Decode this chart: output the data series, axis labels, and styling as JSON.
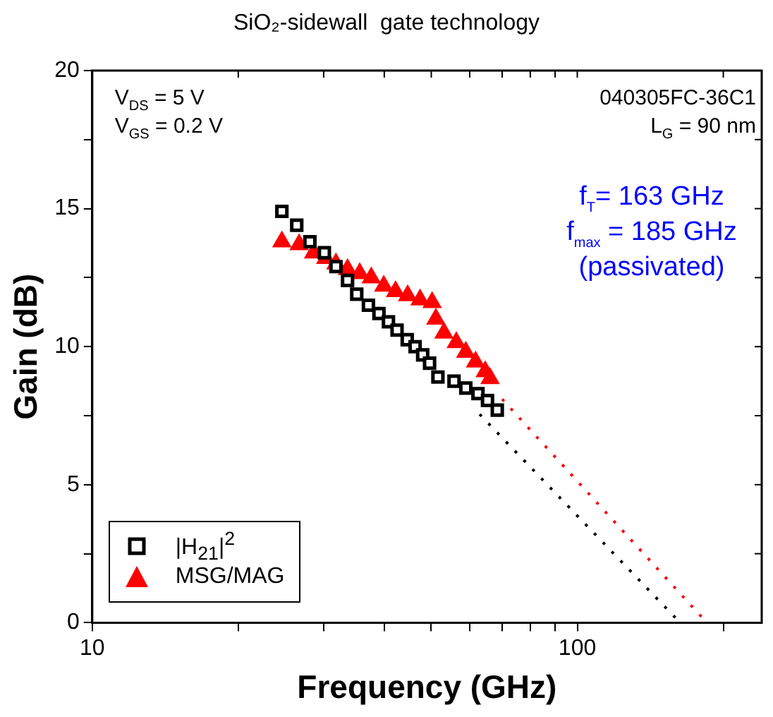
{
  "chart_data": {
    "type": "scatter",
    "title": "SiO₂-sidewall  gate technology",
    "xlabel": "Frequency (GHz)",
    "ylabel": "Gain (dB)",
    "log": "x",
    "xlim": [
      10,
      240
    ],
    "ylim": [
      0,
      20
    ],
    "xticks": [
      10,
      {
        "value": 20,
        "label": null
      },
      {
        "value": 30,
        "label": null
      },
      {
        "value": 40,
        "label": null
      },
      {
        "value": 50,
        "label": null
      },
      {
        "value": 60,
        "label": null
      },
      {
        "value": 70,
        "label": null
      },
      {
        "value": 80,
        "label": null
      },
      {
        "value": 90,
        "label": null
      },
      100,
      {
        "value": 200,
        "label": null
      }
    ],
    "yticks": [
      0,
      {
        "value": 2.5,
        "label": null
      },
      5,
      {
        "value": 7.5,
        "label": null
      },
      10,
      {
        "value": 12.5,
        "label": null
      },
      15,
      {
        "value": 17.5,
        "label": null
      },
      20
    ],
    "grid": false,
    "legend": "bottom left",
    "annotations": [
      "V$_{DS}$ = 5 V",
      "V$_{GS}$ = 0.2 V",
      "040305FC-36C1",
      "L$_{G}$ = 90 nm",
      "f$_{T}$= 163 GHz",
      "f$_{max}$ = 185 GHz",
      "(passivated)"
    ],
    "series": [
      {
        "name": "|H$_{21}$|$^{2}$",
        "marker": "square",
        "color": "#000000",
        "x": [
          24.6,
          26.4,
          28.1,
          30.1,
          31.8,
          33.6,
          35.1,
          37.1,
          39.0,
          40.8,
          42.5,
          44.6,
          46.3,
          48.0,
          49.6,
          51.6,
          55.7,
          58.9,
          62.4,
          65.3,
          68.4
        ],
        "values": [
          14.9,
          14.4,
          13.8,
          13.4,
          12.9,
          12.4,
          11.9,
          11.5,
          11.2,
          10.9,
          10.6,
          10.25,
          10.0,
          9.7,
          9.4,
          8.9,
          8.75,
          8.5,
          8.3,
          8.05,
          7.7
        ]
      },
      {
        "name": "MSG/MAG",
        "marker": "triangle",
        "color": "#ff0000",
        "x": [
          24.6,
          26.7,
          28.6,
          30.3,
          31.8,
          33.6,
          35.6,
          37.6,
          39.9,
          42.2,
          44.7,
          47.4,
          50.2,
          51.1,
          53.1,
          56.3,
          58.9,
          61.7,
          64.6,
          66.1
        ],
        "values": [
          13.8,
          13.7,
          13.4,
          13.2,
          13.0,
          12.8,
          12.65,
          12.5,
          12.2,
          12.0,
          11.85,
          11.7,
          11.6,
          11.0,
          10.5,
          10.15,
          9.8,
          9.45,
          9.1,
          8.85
        ]
      },
      {
        "type": "line",
        "line_style": "dotted",
        "color": "#000000",
        "x": [
          62.9,
          163
        ],
        "values": [
          7.55,
          0
        ]
      },
      {
        "type": "line",
        "line_style": "dotted",
        "color": "#ff0000",
        "x": [
          70,
          185
        ],
        "values": [
          8.1,
          0
        ]
      }
    ]
  }
}
